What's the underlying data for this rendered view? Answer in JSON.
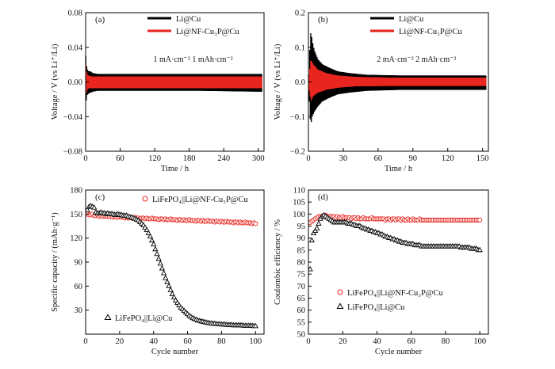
{
  "colors": {
    "black": "#000000",
    "red": "#e8251f"
  },
  "chart_data": [
    {
      "panel": "(a)",
      "type": "line",
      "xlabel": "Time / h",
      "ylabel": "Voltage / V (vs Li⁺/Li)",
      "xlim": [
        0,
        310
      ],
      "ylim": [
        -0.08,
        0.08
      ],
      "xticks": [
        0,
        60,
        120,
        180,
        240,
        300
      ],
      "yticks": [
        -0.08,
        -0.04,
        0.0,
        0.04,
        0.08
      ],
      "ytick_labels": [
        "−0.08",
        "−0.04",
        "0.00",
        "0.04",
        "0.08"
      ],
      "annotation": "1 mA·cm⁻²   1 mAh·cm⁻²",
      "series": [
        {
          "name": "Li@Cu",
          "color": "#000000",
          "style": "square-wave voltage profile",
          "envelope": {
            "x": [
              0,
              2,
              5,
              8,
              12,
              20,
              40,
              100,
              200,
              300,
              307
            ],
            "upper": [
              0.03,
              0.015,
              0.012,
              0.012,
              0.01,
              0.009,
              0.009,
              0.009,
              0.009,
              0.009,
              0.009
            ],
            "lower": [
              -0.025,
              -0.015,
              -0.013,
              -0.012,
              -0.011,
              -0.01,
              -0.01,
              -0.01,
              -0.01,
              -0.011,
              -0.011
            ]
          }
        },
        {
          "name": "Li@NF-Cu₃P@Cu",
          "color": "#e8251f",
          "style": "square-wave voltage profile",
          "envelope": {
            "x": [
              0,
              2,
              5,
              10,
              50,
              150,
              250,
              307
            ],
            "upper": [
              0.02,
              0.009,
              0.007,
              0.006,
              0.006,
              0.006,
              0.006,
              0.006
            ],
            "lower": [
              -0.015,
              -0.009,
              -0.007,
              -0.007,
              -0.007,
              -0.007,
              -0.007,
              -0.007
            ]
          }
        }
      ]
    },
    {
      "panel": "(b)",
      "type": "line",
      "xlabel": "Time / h",
      "ylabel": "Voltage / V (vs Li⁺/Li)",
      "xlim": [
        0,
        155
      ],
      "ylim": [
        -0.2,
        0.2
      ],
      "xticks": [
        0,
        30,
        60,
        90,
        120,
        150
      ],
      "yticks": [
        -0.2,
        -0.1,
        0.0,
        0.1,
        0.2
      ],
      "ytick_labels": [
        "−0.2",
        "−0.1",
        "0.0",
        "0.1",
        "0.2"
      ],
      "annotation": "2 mA·cm⁻²   2 mAh·cm⁻²",
      "series": [
        {
          "name": "Li@Cu",
          "color": "#000000",
          "style": "square-wave voltage profile",
          "envelope": {
            "x": [
              0,
              1,
              2,
              3,
              5,
              8,
              12,
              18,
              25,
              35,
              50,
              80,
              120,
              153
            ],
            "upper": [
              0.02,
              0.1,
              0.15,
              0.12,
              0.09,
              0.065,
              0.05,
              0.04,
              0.03,
              0.025,
              0.02,
              0.018,
              0.018,
              0.018
            ],
            "lower": [
              -0.02,
              -0.1,
              -0.12,
              -0.1,
              -0.085,
              -0.07,
              -0.055,
              -0.045,
              -0.035,
              -0.03,
              -0.025,
              -0.022,
              -0.022,
              -0.022
            ]
          }
        },
        {
          "name": "Li@NF-Cu₃P@Cu",
          "color": "#e8251f",
          "style": "square-wave voltage profile",
          "envelope": {
            "x": [
              0,
              2,
              4,
              8,
              15,
              25,
              40,
              70,
              120,
              153
            ],
            "upper": [
              0.015,
              0.065,
              0.05,
              0.035,
              0.025,
              0.018,
              0.014,
              0.012,
              0.012,
              0.012
            ],
            "lower": [
              -0.015,
              -0.055,
              -0.04,
              -0.03,
              -0.022,
              -0.016,
              -0.012,
              -0.011,
              -0.011,
              -0.011
            ]
          }
        }
      ]
    },
    {
      "panel": "(c)",
      "type": "scatter",
      "xlabel": "Cycle number",
      "ylabel": "Specific capacity / (mAh·g⁻¹)",
      "xlim": [
        0,
        105
      ],
      "ylim": [
        0,
        180
      ],
      "xticks": [
        0,
        20,
        40,
        60,
        80,
        100
      ],
      "yticks": [
        30,
        60,
        90,
        120,
        150,
        180
      ],
      "series": [
        {
          "name": "LiFePO₄||Li@NF-Cu₃P@Cu",
          "color": "#e8251f",
          "marker": "circle",
          "x": [
            1,
            2,
            3,
            4,
            5,
            6,
            7,
            8,
            9,
            10,
            11,
            12,
            13,
            14,
            15,
            16,
            17,
            18,
            19,
            20,
            21,
            22,
            23,
            24,
            25,
            26,
            27,
            28,
            29,
            30,
            31,
            32,
            33,
            34,
            35,
            36,
            37,
            38,
            39,
            40,
            41,
            42,
            43,
            44,
            45,
            46,
            47,
            48,
            49,
            50,
            51,
            52,
            53,
            54,
            55,
            56,
            57,
            58,
            59,
            60,
            61,
            62,
            63,
            64,
            65,
            66,
            67,
            68,
            69,
            70,
            71,
            72,
            73,
            74,
            75,
            76,
            77,
            78,
            79,
            80,
            81,
            82,
            83,
            84,
            85,
            86,
            87,
            88,
            89,
            90,
            91,
            92,
            93,
            94,
            95,
            96,
            97,
            98,
            99,
            100
          ],
          "y": [
            150,
            149,
            149,
            150,
            148,
            148,
            149,
            147,
            148,
            147,
            148,
            147,
            147,
            147,
            147,
            146,
            147,
            146,
            146,
            147,
            146,
            146,
            145,
            146,
            145,
            146,
            145,
            145,
            146,
            145,
            145,
            144,
            145,
            145,
            144,
            145,
            144,
            144,
            145,
            144,
            144,
            144,
            143,
            144,
            144,
            143,
            144,
            143,
            143,
            144,
            143,
            143,
            143,
            142,
            143,
            143,
            142,
            143,
            142,
            142,
            143,
            142,
            142,
            142,
            141,
            142,
            142,
            141,
            142,
            141,
            141,
            142,
            141,
            141,
            141,
            140,
            141,
            141,
            140,
            141,
            140,
            140,
            141,
            140,
            140,
            140,
            139,
            140,
            140,
            139,
            140,
            139,
            139,
            140,
            139,
            139,
            139,
            138,
            139,
            138
          ]
        },
        {
          "name": "LiFePO₄||Li@Cu",
          "color": "#000000",
          "marker": "triangle",
          "x": [
            1,
            2,
            3,
            4,
            5,
            6,
            7,
            8,
            9,
            10,
            11,
            12,
            13,
            14,
            15,
            16,
            17,
            18,
            19,
            20,
            21,
            22,
            23,
            24,
            25,
            26,
            27,
            28,
            29,
            30,
            31,
            32,
            33,
            34,
            35,
            36,
            37,
            38,
            39,
            40,
            41,
            42,
            43,
            44,
            45,
            46,
            47,
            48,
            49,
            50,
            51,
            52,
            53,
            54,
            55,
            56,
            57,
            58,
            59,
            60,
            61,
            62,
            63,
            64,
            65,
            66,
            67,
            68,
            69,
            70,
            71,
            72,
            73,
            74,
            75,
            76,
            77,
            78,
            79,
            80,
            81,
            82,
            83,
            84,
            85,
            86,
            87,
            88,
            89,
            90,
            91,
            92,
            93,
            94,
            95,
            96,
            97,
            98,
            99,
            100
          ],
          "y": [
            155,
            159,
            160,
            159,
            158,
            152,
            151,
            151,
            152,
            151,
            151,
            150,
            151,
            150,
            150,
            150,
            149,
            149,
            150,
            149,
            149,
            148,
            148,
            148,
            147,
            146,
            146,
            145,
            144,
            143,
            142,
            140,
            138,
            136,
            133,
            130,
            126,
            122,
            117,
            112,
            106,
            100,
            94,
            88,
            82,
            76,
            70,
            65,
            60,
            55,
            50,
            46,
            42,
            39,
            36,
            33,
            31,
            29,
            27,
            25,
            23,
            21.5,
            20,
            19,
            18,
            17,
            16.5,
            16,
            15.5,
            15,
            14.5,
            14,
            13.5,
            13.5,
            13,
            13,
            12.5,
            12.5,
            12.5,
            12,
            12,
            12,
            11.5,
            11.5,
            11.5,
            11.5,
            11,
            11,
            11,
            11,
            11,
            11,
            10.5,
            10.5,
            10.5,
            10.5,
            10.5,
            10.5,
            10,
            10
          ]
        }
      ]
    },
    {
      "panel": "(d)",
      "type": "scatter",
      "xlabel": "Cycle number",
      "ylabel": "Coulombic efficiency / %",
      "xlim": [
        0,
        105
      ],
      "ylim": [
        50,
        110
      ],
      "xticks": [
        0,
        20,
        40,
        60,
        80,
        100
      ],
      "yticks": [
        50,
        55,
        60,
        65,
        70,
        75,
        80,
        85,
        90,
        95,
        100,
        105,
        110
      ],
      "series": [
        {
          "name": "LiFePO₄||Li@NF-Cu₃P@Cu",
          "color": "#e8251f",
          "marker": "circle",
          "x": [
            1,
            2,
            3,
            4,
            5,
            6,
            7,
            8,
            9,
            10,
            11,
            12,
            13,
            14,
            15,
            16,
            17,
            18,
            19,
            20,
            21,
            22,
            23,
            24,
            25,
            26,
            27,
            28,
            29,
            30,
            31,
            32,
            33,
            34,
            35,
            36,
            37,
            38,
            39,
            40,
            41,
            42,
            43,
            44,
            45,
            46,
            47,
            48,
            49,
            50,
            51,
            52,
            53,
            54,
            55,
            56,
            57,
            58,
            59,
            60,
            61,
            62,
            63,
            64,
            65,
            66,
            67,
            68,
            69,
            70,
            71,
            72,
            73,
            74,
            75,
            76,
            77,
            78,
            79,
            80,
            81,
            82,
            83,
            84,
            85,
            86,
            87,
            88,
            89,
            90,
            91,
            92,
            93,
            94,
            95,
            96,
            97,
            98,
            99,
            100
          ],
          "y": [
            96.5,
            97,
            97.5,
            98,
            98.5,
            99,
            99,
            99,
            99,
            99.5,
            99,
            99,
            99,
            99,
            99,
            98.5,
            99,
            98.5,
            98.5,
            99,
            98.5,
            98.5,
            98.5,
            98.5,
            98,
            98.5,
            98.5,
            98,
            98.5,
            98,
            98,
            98.5,
            98,
            98,
            98,
            98,
            98.5,
            98,
            98,
            98,
            98,
            98,
            98,
            98,
            97.5,
            98,
            98,
            97.5,
            98,
            98,
            97.5,
            98,
            98,
            97.5,
            98,
            97.5,
            97.5,
            98,
            97.5,
            97.5,
            98,
            97.5,
            97.5,
            97.5,
            98,
            97.5,
            97.5,
            97.5,
            97.5,
            97.5,
            97.5,
            97.5,
            97.5,
            97.5,
            97.5,
            97.5,
            97.5,
            97.5,
            97.5,
            97.5,
            97.5,
            97.5,
            97.5,
            97.5,
            97.5,
            97.5,
            97.5,
            97.5,
            97.5,
            97.5,
            97.5,
            97.5,
            97.5,
            97.5,
            97.5,
            97.5,
            97.5,
            97.5,
            97.5,
            97.5
          ]
        },
        {
          "name": "LiFePO₄||Li@Cu",
          "color": "#000000",
          "marker": "triangle",
          "x": [
            1,
            2,
            3,
            4,
            5,
            6,
            7,
            8,
            9,
            10,
            11,
            12,
            13,
            14,
            15,
            16,
            17,
            18,
            19,
            20,
            21,
            22,
            23,
            24,
            25,
            26,
            27,
            28,
            29,
            30,
            31,
            32,
            33,
            34,
            35,
            36,
            37,
            38,
            39,
            40,
            41,
            42,
            43,
            44,
            45,
            46,
            47,
            48,
            49,
            50,
            51,
            52,
            53,
            54,
            55,
            56,
            57,
            58,
            59,
            60,
            61,
            62,
            63,
            64,
            65,
            66,
            67,
            68,
            69,
            70,
            71,
            72,
            73,
            74,
            75,
            76,
            77,
            78,
            79,
            80,
            81,
            82,
            83,
            84,
            85,
            86,
            87,
            88,
            89,
            90,
            91,
            92,
            93,
            94,
            95,
            96,
            97,
            98,
            99,
            100
          ],
          "y": [
            77,
            89,
            92,
            93,
            94,
            96,
            98,
            99,
            99.5,
            99,
            98.5,
            98,
            97.5,
            97,
            96.5,
            96.5,
            96.5,
            96.5,
            96.5,
            96.5,
            96.5,
            96.5,
            96,
            96,
            96,
            95.5,
            95.5,
            95,
            95,
            95,
            94.5,
            94,
            94,
            93.5,
            93.5,
            93,
            93,
            92.5,
            92.5,
            92,
            92,
            91.5,
            91.5,
            91,
            90.5,
            90.5,
            90,
            90,
            89.5,
            89.5,
            89,
            89,
            88.5,
            88.5,
            88,
            88,
            88,
            87.5,
            87.5,
            87.5,
            87.5,
            87,
            87,
            87,
            87,
            86.5,
            86.5,
            86.5,
            86.5,
            86.5,
            86.5,
            86.5,
            86.5,
            86.5,
            86.5,
            86.5,
            86.5,
            86.5,
            86.5,
            86.5,
            86.5,
            86.5,
            86.5,
            86.5,
            86.5,
            86.5,
            86.5,
            86.5,
            86,
            86,
            86,
            86,
            86,
            86,
            85.5,
            85.5,
            85.5,
            85.5,
            85,
            85
          ]
        }
      ]
    }
  ]
}
